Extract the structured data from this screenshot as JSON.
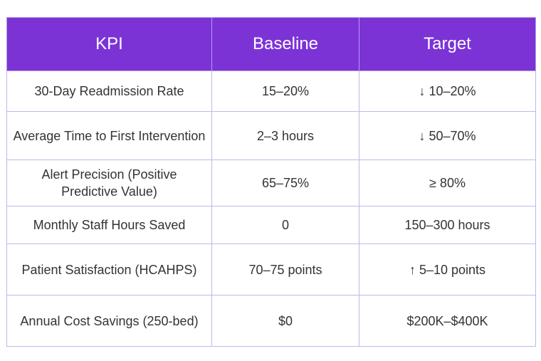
{
  "table": {
    "headers": [
      "KPI",
      "Baseline",
      "Target"
    ],
    "rows": [
      [
        "30-Day Readmission Rate",
        "15–20%",
        "↓ 10–20%"
      ],
      [
        "Average Time to First Intervention",
        "2–3 hours",
        "↓ 50–70%"
      ],
      [
        "Alert Precision (Positive Predictive Value)",
        "65–75%",
        "≥ 80%"
      ],
      [
        "Monthly Staff Hours Saved",
        "0",
        "150–300 hours"
      ],
      [
        "Patient Satisfaction (HCAHPS)",
        "70–75 points",
        "↑ 5–10 points"
      ],
      [
        "Annual Cost Savings (250-bed)",
        "$0",
        "$200K–$400K"
      ]
    ]
  },
  "colors": {
    "header_bg": "#7b33d6",
    "header_text": "#ffffff",
    "border": "#c7b4ec",
    "body_text": "#333333"
  }
}
